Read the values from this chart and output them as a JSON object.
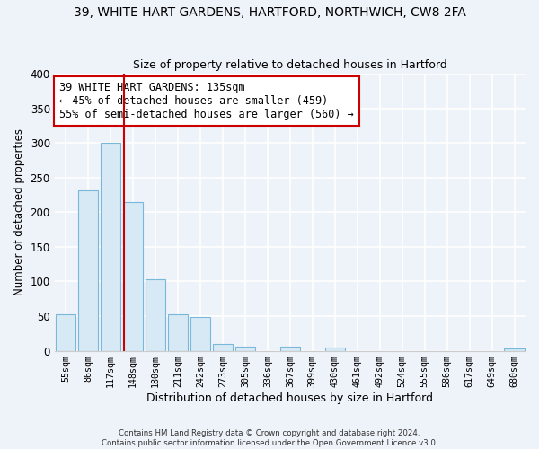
{
  "title1": "39, WHITE HART GARDENS, HARTFORD, NORTHWICH, CW8 2FA",
  "title2": "Size of property relative to detached houses in Hartford",
  "xlabel": "Distribution of detached houses by size in Hartford",
  "ylabel": "Number of detached properties",
  "categories": [
    "55sqm",
    "86sqm",
    "117sqm",
    "148sqm",
    "180sqm",
    "211sqm",
    "242sqm",
    "273sqm",
    "305sqm",
    "336sqm",
    "367sqm",
    "399sqm",
    "430sqm",
    "461sqm",
    "492sqm",
    "524sqm",
    "555sqm",
    "586sqm",
    "617sqm",
    "649sqm",
    "680sqm"
  ],
  "values": [
    53,
    232,
    300,
    215,
    103,
    52,
    49,
    10,
    6,
    0,
    6,
    0,
    4,
    0,
    0,
    0,
    0,
    0,
    0,
    0,
    3
  ],
  "bar_facecolor": "#d6e9f5",
  "bar_edgecolor": "#7ab8d9",
  "property_line_x": 2.58,
  "annotation_title": "39 WHITE HART GARDENS: 135sqm",
  "annotation_line1": "← 45% of detached houses are smaller (459)",
  "annotation_line2": "55% of semi-detached houses are larger (560) →",
  "annotation_box_facecolor": "#ffffff",
  "annotation_box_edgecolor": "#cc0000",
  "property_line_color": "#cc0000",
  "ylim": [
    0,
    400
  ],
  "yticks": [
    0,
    50,
    100,
    150,
    200,
    250,
    300,
    350,
    400
  ],
  "footer1": "Contains HM Land Registry data © Crown copyright and database right 2024.",
  "footer2": "Contains public sector information licensed under the Open Government Licence v3.0.",
  "bg_color": "#eef2f9"
}
